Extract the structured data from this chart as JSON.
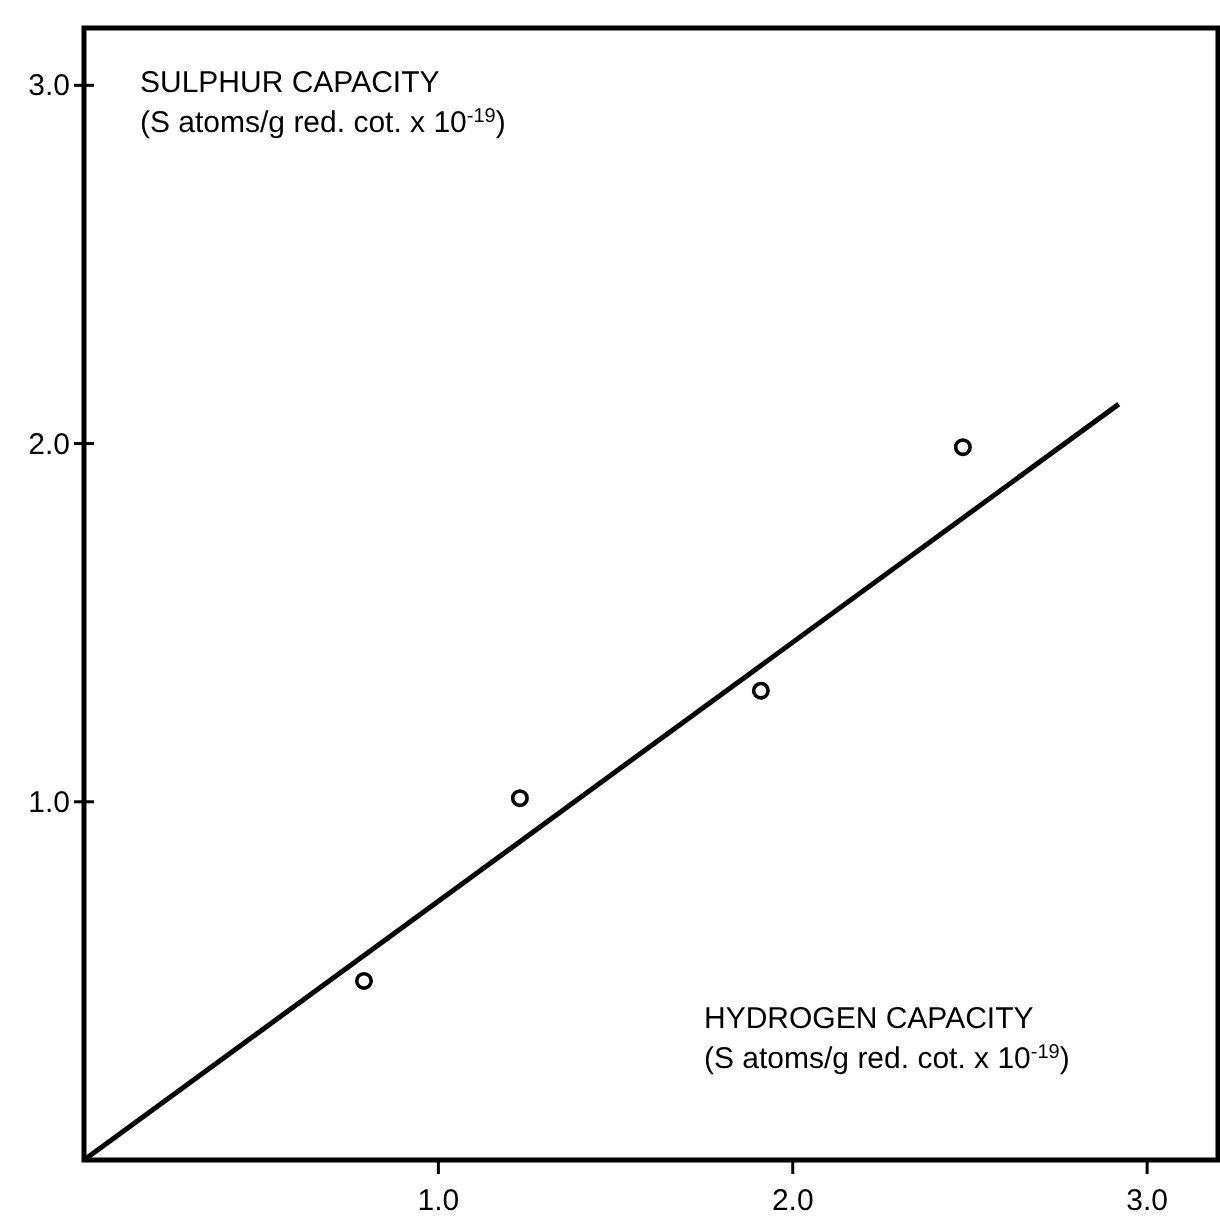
{
  "chart_data": {
    "type": "scatter",
    "xlabel": "HYDROGEN CAPACITY\n(S atoms/g red. cot. x 10$^{-19}$)",
    "ylabel": "SULPHUR CAPACITY\n(S atoms/g red. cot. x 10$^{-19}$)",
    "xlim": [
      0,
      3.2
    ],
    "ylim": [
      0,
      3.16
    ],
    "xticks": [
      {
        "value": 1,
        "label": "1.0"
      },
      {
        "value": 2,
        "label": "2.0"
      },
      {
        "value": 3,
        "label": "3.0"
      }
    ],
    "yticks": [
      {
        "value": 1,
        "label": "1.0"
      },
      {
        "value": 2,
        "label": "2.0"
      },
      {
        "value": 3,
        "label": "3.0"
      }
    ],
    "grid": false,
    "series": [
      {
        "color": "#000000",
        "marker": "circle",
        "x": [
          0.79,
          1.23,
          1.91,
          2.48
        ],
        "values": [
          0.5,
          1.01,
          1.31,
          1.99
        ]
      },
      {
        "type": "line",
        "color": "#000000",
        "marker": "none",
        "x": [
          0,
          2.92
        ],
        "values": [
          0,
          2.11
        ]
      }
    ]
  }
}
